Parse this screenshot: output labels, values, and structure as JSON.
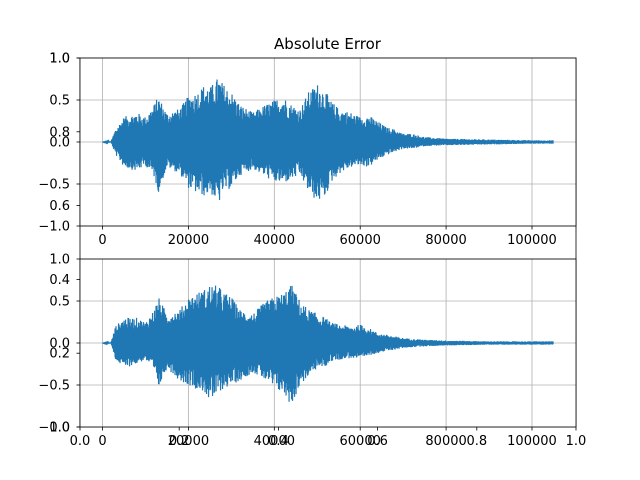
{
  "chart_data": [
    {
      "type": "line",
      "title": "Absolute Error",
      "xlabel": "",
      "ylabel": "",
      "xlim": [
        -5250,
        110250
      ],
      "ylim": [
        -1.0,
        1.0
      ],
      "grid": true,
      "x_ticks": [
        0,
        20000,
        40000,
        60000,
        80000,
        100000
      ],
      "x_tick_labels": [
        "0",
        "20000",
        "40000",
        "60000",
        "80000",
        "100000"
      ],
      "y_ticks": [
        -1.0,
        -0.5,
        0.0,
        0.5,
        1.0
      ],
      "y_tick_labels": [
        "−1.0",
        "−0.5",
        "0.0",
        "0.5",
        "1.0"
      ],
      "series_color": "#1f77b4",
      "n_samples": 105000,
      "envelope": {
        "x": [
          0,
          2000,
          3000,
          5000,
          8000,
          10000,
          12000,
          13000,
          15000,
          18000,
          20000,
          22000,
          24000,
          25000,
          27000,
          28000,
          30000,
          32000,
          35000,
          38000,
          40000,
          42000,
          44000,
          46000,
          48000,
          50000,
          52000,
          53000,
          55000,
          58000,
          60000,
          62000,
          64000,
          66000,
          68000,
          70000,
          72000,
          75000,
          80000,
          90000,
          100000,
          105000
        ],
        "pos": [
          0.0,
          0.01,
          0.15,
          0.3,
          0.35,
          0.3,
          0.45,
          0.55,
          0.35,
          0.4,
          0.55,
          0.6,
          0.7,
          0.65,
          0.78,
          0.7,
          0.6,
          0.45,
          0.35,
          0.45,
          0.5,
          0.55,
          0.45,
          0.4,
          0.6,
          0.7,
          0.6,
          0.5,
          0.4,
          0.35,
          0.3,
          0.32,
          0.25,
          0.18,
          0.15,
          0.1,
          0.1,
          0.06,
          0.04,
          0.03,
          0.02,
          0.02
        ],
        "neg": [
          0.0,
          0.01,
          0.15,
          0.3,
          0.35,
          0.28,
          0.42,
          0.6,
          0.3,
          0.38,
          0.55,
          0.62,
          0.65,
          0.6,
          0.75,
          0.6,
          0.55,
          0.4,
          0.32,
          0.42,
          0.48,
          0.5,
          0.45,
          0.4,
          0.6,
          0.72,
          0.65,
          0.5,
          0.38,
          0.3,
          0.28,
          0.3,
          0.22,
          0.16,
          0.12,
          0.08,
          0.08,
          0.05,
          0.04,
          0.03,
          0.02,
          0.02
        ]
      }
    },
    {
      "type": "line",
      "title": "",
      "xlabel": "",
      "ylabel": "",
      "xlim": [
        -5250,
        110250
      ],
      "ylim": [
        -1.0,
        1.0
      ],
      "grid": true,
      "x_ticks": [
        0,
        20000,
        40000,
        60000,
        80000,
        100000
      ],
      "x_tick_labels": [
        "0",
        "20000",
        "40000",
        "60000",
        "80000",
        "100000"
      ],
      "y_ticks": [
        -1.0,
        -0.5,
        0.0,
        0.5,
        1.0
      ],
      "y_tick_labels": [
        "−1.0",
        "−0.5",
        "0.0",
        "0.5",
        "1.0"
      ],
      "series_color": "#1f77b4",
      "n_samples": 105000,
      "envelope": {
        "x": [
          0,
          2000,
          3000,
          5000,
          8000,
          10000,
          12000,
          13000,
          15000,
          18000,
          20000,
          22000,
          24000,
          25000,
          27000,
          28000,
          30000,
          32000,
          35000,
          38000,
          40000,
          42000,
          44000,
          46000,
          48000,
          50000,
          52000,
          53000,
          55000,
          58000,
          60000,
          62000,
          64000,
          66000,
          68000,
          70000,
          72000,
          75000,
          80000,
          90000,
          100000,
          105000
        ],
        "pos": [
          0.0,
          0.01,
          0.2,
          0.3,
          0.3,
          0.25,
          0.4,
          0.55,
          0.35,
          0.4,
          0.55,
          0.6,
          0.65,
          0.7,
          0.68,
          0.62,
          0.55,
          0.4,
          0.35,
          0.5,
          0.55,
          0.6,
          0.7,
          0.5,
          0.4,
          0.35,
          0.3,
          0.25,
          0.22,
          0.2,
          0.22,
          0.18,
          0.12,
          0.1,
          0.08,
          0.06,
          0.05,
          0.04,
          0.03,
          0.02,
          0.02,
          0.02
        ],
        "neg": [
          0.0,
          0.01,
          0.2,
          0.3,
          0.25,
          0.2,
          0.35,
          0.55,
          0.3,
          0.45,
          0.5,
          0.55,
          0.6,
          0.72,
          0.6,
          0.55,
          0.5,
          0.45,
          0.35,
          0.45,
          0.55,
          0.6,
          0.75,
          0.5,
          0.4,
          0.3,
          0.28,
          0.22,
          0.2,
          0.18,
          0.2,
          0.15,
          0.12,
          0.1,
          0.08,
          0.06,
          0.05,
          0.04,
          0.03,
          0.02,
          0.02,
          0.02
        ]
      }
    },
    {
      "type": "line",
      "title": "",
      "xlabel": "",
      "ylabel": "",
      "xlim": [
        0.0,
        1.0
      ],
      "ylim": [
        0.0,
        1.0
      ],
      "grid": false,
      "x_ticks": [
        0.0,
        0.2,
        0.4,
        0.6,
        0.8,
        1.0
      ],
      "x_tick_labels": [
        "0.0",
        "0.2",
        "0.4",
        "0.6",
        "0.8",
        "1.0"
      ],
      "y_ticks": [
        0.0,
        0.2,
        0.4,
        0.6,
        0.8,
        1.0
      ],
      "y_tick_labels": [
        "0.0",
        "0.2",
        "0.4",
        "0.6",
        "0.8",
        "1.0"
      ]
    }
  ]
}
